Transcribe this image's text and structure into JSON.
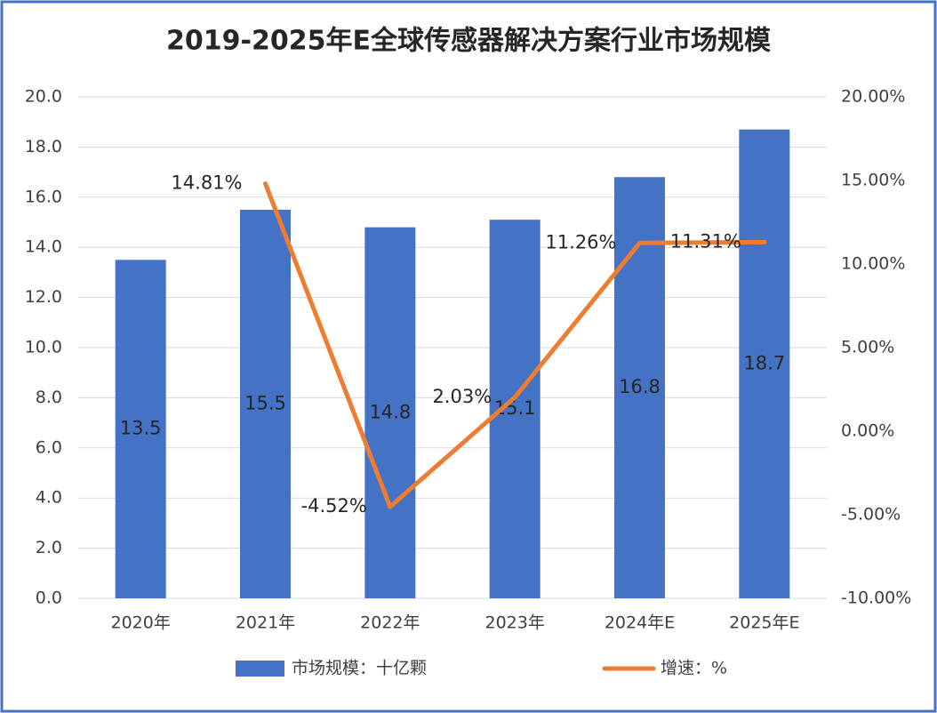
{
  "chart_data": {
    "type": "bar",
    "title": "2019-2025年E全球传感器解决方案行业市场规模",
    "categories": [
      "2020年",
      "2021年",
      "2022年",
      "2023年",
      "2024年E",
      "2025年E"
    ],
    "series": [
      {
        "name": "市场规模：十亿颗",
        "type": "bar",
        "color": "#4472c4",
        "values": [
          13.5,
          15.5,
          14.8,
          15.1,
          16.8,
          18.7
        ]
      },
      {
        "name": "增速：%",
        "type": "line",
        "axis": "y2",
        "color": "#ed7d31",
        "values": [
          null,
          14.81,
          -4.52,
          2.03,
          11.26,
          11.31
        ],
        "value_labels": [
          null,
          "14.81%",
          "-4.52%",
          "2.03%",
          "11.26%",
          "11.31%"
        ]
      }
    ],
    "ylim": [
      0,
      20
    ],
    "yticks": [
      {
        "value": 0,
        "label": "0.0"
      },
      {
        "value": 2,
        "label": "2.0"
      },
      {
        "value": 4,
        "label": "4.0"
      },
      {
        "value": 6,
        "label": "6.0"
      },
      {
        "value": 8,
        "label": "8.0"
      },
      {
        "value": 10,
        "label": "10.0"
      },
      {
        "value": 12,
        "label": "12.0"
      },
      {
        "value": 14,
        "label": "14.0"
      },
      {
        "value": 16,
        "label": "16.0"
      },
      {
        "value": 18,
        "label": "18.0"
      },
      {
        "value": 20,
        "label": "20.0"
      }
    ],
    "y2lim": [
      -10,
      20
    ],
    "y2ticks": [
      {
        "value": -10,
        "label": "-10.00%"
      },
      {
        "value": -5,
        "label": "-5.00%"
      },
      {
        "value": 0,
        "label": "0.00%"
      },
      {
        "value": 5,
        "label": "5.00%"
      },
      {
        "value": 10,
        "label": "10.00%"
      },
      {
        "value": 15,
        "label": "15.00%"
      },
      {
        "value": 20,
        "label": "20.00%"
      }
    ],
    "grid": true,
    "legend": "bottom"
  }
}
